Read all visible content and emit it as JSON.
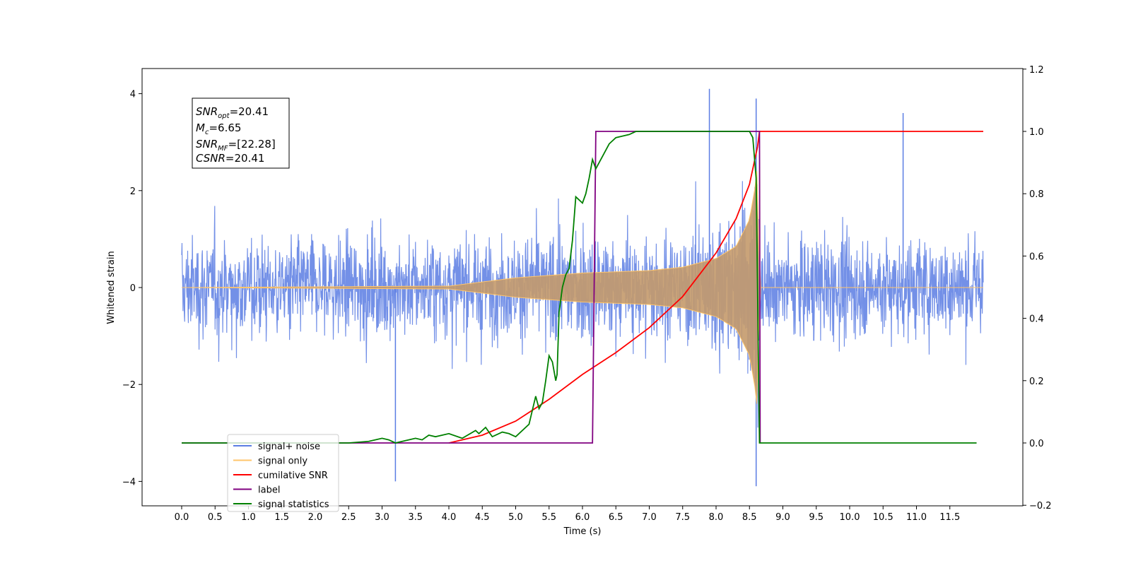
{
  "chart_data": {
    "type": "line",
    "xlabel": "Time (s)",
    "ylabel": "Whitened strain",
    "xlim": [
      -0.6,
      12.6
    ],
    "ylim": [
      -4.5,
      4.5
    ],
    "y2lim": [
      -0.2,
      1.2
    ],
    "x_ticks": [
      0.0,
      0.5,
      1.0,
      1.5,
      2.0,
      2.5,
      3.0,
      3.5,
      4.0,
      4.5,
      5.0,
      5.5,
      6.0,
      6.5,
      7.0,
      7.5,
      8.0,
      8.5,
      9.0,
      9.5,
      10.0,
      10.5,
      11.0,
      11.5
    ],
    "x_tick_labels": [
      "0.0",
      "0.5",
      "1.0",
      "1.5",
      "2.0",
      "2.5",
      "3.0",
      "3.5",
      "4.0",
      "4.5",
      "5.0",
      "5.5",
      "6.0",
      "6.5",
      "7.0",
      "7.5",
      "8.0",
      "8.5",
      "9.0",
      "9.5",
      "10.0",
      "10.5",
      "11.0",
      "11.5"
    ],
    "y_ticks": [
      -4,
      -2,
      0,
      2,
      4
    ],
    "y_tick_labels": [
      "−4",
      "−2",
      "0",
      "2",
      "4"
    ],
    "y2_ticks": [
      -0.2,
      0.0,
      0.2,
      0.4,
      0.6,
      0.8,
      1.0,
      1.2
    ],
    "y2_tick_labels": [
      "−0.2",
      "0.0",
      "0.2",
      "0.4",
      "0.6",
      "0.8",
      "1.0",
      "1.2"
    ],
    "annotation": {
      "snr_opt": {
        "base": "SNR",
        "sub": "opt",
        "value": "=20.41"
      },
      "mc": {
        "base": "M",
        "sub": "c",
        "value": "=6.65"
      },
      "snr_mf": {
        "base": "SNR",
        "sub": "MF",
        "value": "=[22.28]"
      },
      "csnr": {
        "base": "CSNR",
        "value": "=20.41"
      }
    },
    "legend": {
      "position": "lower left",
      "entries": [
        {
          "label": "signal+ noise",
          "color": "#5b7de3"
        },
        {
          "label": "signal only",
          "color": "#ffc56b"
        },
        {
          "label": "cumilative SNR",
          "color": "#ff0000"
        },
        {
          "label": "label",
          "color": "#800080"
        },
        {
          "label": "signal statistics",
          "color": "#008000"
        }
      ]
    },
    "series": [
      {
        "name": "signal+ noise",
        "axis": "left",
        "color": "#5b7de3",
        "description_values": {
          "x_range": [
            0.0,
            12.0
          ],
          "noise_amplitude_approx": 2.0,
          "peaks": [
            [
              7.9,
              4.1
            ],
            [
              8.6,
              3.9
            ],
            [
              8.6,
              -4.1
            ],
            [
              3.2,
              -4.0
            ],
            [
              10.8,
              3.6
            ]
          ]
        }
      },
      {
        "name": "signal only",
        "axis": "left",
        "color": "#ffc56b",
        "chirp_envelope": [
          [
            0.0,
            0.0
          ],
          [
            4.0,
            0.03
          ],
          [
            5.0,
            0.2
          ],
          [
            6.0,
            0.3
          ],
          [
            7.0,
            0.35
          ],
          [
            7.5,
            0.42
          ],
          [
            8.0,
            0.6
          ],
          [
            8.3,
            0.85
          ],
          [
            8.5,
            1.4
          ],
          [
            8.6,
            2.2
          ],
          [
            8.62,
            2.6
          ],
          [
            8.65,
            0.0
          ],
          [
            12.0,
            0.0
          ]
        ]
      },
      {
        "name": "cumilative SNR",
        "axis": "right",
        "color": "#ff0000",
        "x": [
          4.0,
          4.5,
          5.0,
          5.5,
          6.0,
          6.5,
          7.0,
          7.5,
          8.0,
          8.3,
          8.5,
          8.62,
          8.65,
          12.0
        ],
        "y": [
          0.0,
          0.025,
          0.07,
          0.14,
          0.22,
          0.29,
          0.37,
          0.47,
          0.61,
          0.72,
          0.83,
          0.95,
          1.0,
          1.0
        ]
      },
      {
        "name": "label",
        "axis": "right",
        "color": "#800080",
        "x": [
          0.0,
          6.15,
          6.2,
          8.65,
          8.66
        ],
        "y": [
          0.0,
          0.0,
          1.0,
          1.0,
          0.0
        ]
      },
      {
        "name": "signal statistics",
        "axis": "right",
        "color": "#008000",
        "x": [
          0.0,
          2.5,
          2.8,
          3.0,
          3.1,
          3.2,
          3.5,
          3.6,
          3.7,
          3.8,
          4.0,
          4.2,
          4.4,
          4.45,
          4.55,
          4.65,
          4.8,
          4.9,
          5.0,
          5.2,
          5.3,
          5.35,
          5.4,
          5.45,
          5.5,
          5.55,
          5.6,
          5.62,
          5.65,
          5.7,
          5.75,
          5.8,
          5.85,
          5.9,
          6.0,
          6.05,
          6.1,
          6.15,
          6.2,
          6.25,
          6.3,
          6.4,
          6.5,
          6.6,
          6.7,
          6.8,
          7.0,
          8.5,
          8.55,
          8.6,
          8.65,
          8.7,
          11.9
        ],
        "y": [
          0.0,
          0.0,
          0.005,
          0.015,
          0.01,
          0.0,
          0.015,
          0.01,
          0.025,
          0.02,
          0.03,
          0.015,
          0.04,
          0.03,
          0.05,
          0.02,
          0.035,
          0.03,
          0.02,
          0.06,
          0.15,
          0.11,
          0.13,
          0.2,
          0.28,
          0.26,
          0.2,
          0.22,
          0.42,
          0.5,
          0.54,
          0.56,
          0.65,
          0.79,
          0.77,
          0.8,
          0.85,
          0.91,
          0.88,
          0.9,
          0.92,
          0.96,
          0.98,
          0.985,
          0.99,
          1.0,
          1.0,
          1.0,
          0.98,
          0.85,
          0.0,
          0.0,
          0.0
        ]
      }
    ]
  }
}
